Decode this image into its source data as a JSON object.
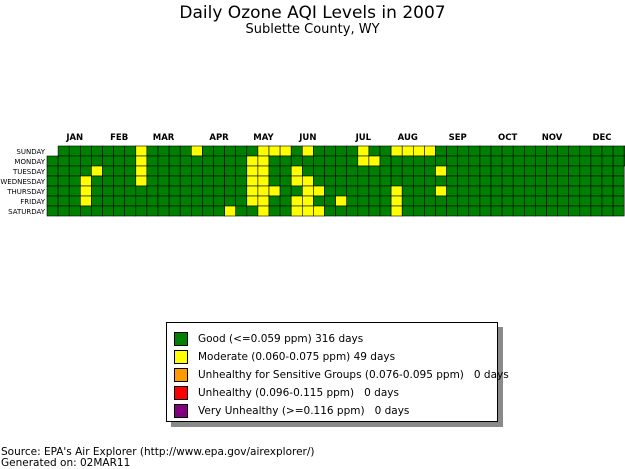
{
  "chart_data": {
    "type": "heatmap",
    "title": "Daily Ozone AQI Levels in 2007",
    "subtitle": "Sublette County, WY",
    "year": 2007,
    "months": [
      "JAN",
      "FEB",
      "MAR",
      "APR",
      "MAY",
      "JUN",
      "JUL",
      "AUG",
      "SEP",
      "OCT",
      "NOV",
      "DEC"
    ],
    "weekdays": [
      "SUNDAY",
      "MONDAY",
      "TUESDAY",
      "WEDNESDAY",
      "THURSDAY",
      "FRIDAY",
      "SATURDAY"
    ],
    "categories": [
      {
        "name": "Good",
        "range": "(<=0.059 ppm)",
        "days": "316 days",
        "color": "#008000"
      },
      {
        "name": "Moderate",
        "range": "(0.060-0.075 ppm)",
        "days": "49 days",
        "color": "#ffff00"
      },
      {
        "name": "Unhealthy for Sensitive Groups",
        "range": "(0.076-0.095 ppm)",
        "days": "0 days",
        "color": "#ff9900"
      },
      {
        "name": "Unhealthy",
        "range": "(0.096-0.115 ppm)",
        "days": "0 days",
        "color": "#ff0000"
      },
      {
        "name": "Very Unhealthy",
        "range": "(>=0.116 ppm)",
        "days": "0 days",
        "color": "#800080"
      }
    ],
    "default_category": "Good",
    "moderate_dates": [
      "2007-01-24",
      "2007-01-25",
      "2007-01-26",
      "2007-01-30",
      "2007-02-25",
      "2007-02-26",
      "2007-02-27",
      "2007-02-28",
      "2007-04-01",
      "2007-04-28",
      "2007-05-07",
      "2007-05-08",
      "2007-05-09",
      "2007-05-10",
      "2007-05-11",
      "2007-05-13",
      "2007-05-14",
      "2007-05-15",
      "2007-05-16",
      "2007-05-17",
      "2007-05-18",
      "2007-05-19",
      "2007-05-20",
      "2007-05-24",
      "2007-05-27",
      "2007-06-05",
      "2007-06-06",
      "2007-06-08",
      "2007-06-09",
      "2007-06-10",
      "2007-06-13",
      "2007-06-14",
      "2007-06-15",
      "2007-06-16",
      "2007-06-21",
      "2007-06-23",
      "2007-07-06",
      "2007-07-15",
      "2007-07-16",
      "2007-07-23",
      "2007-08-05",
      "2007-08-09",
      "2007-08-10",
      "2007-08-11",
      "2007-08-12",
      "2007-08-19",
      "2007-08-26",
      "2007-09-04",
      "2007-09-06"
    ]
  },
  "legend": {
    "items": [
      {
        "label": "Good (<=0.059 ppm) 316 days",
        "color": "#008000"
      },
      {
        "label": "Moderate (0.060-0.075 ppm)  49 days",
        "color": "#ffff00"
      },
      {
        "label": "Unhealthy for Sensitive Groups (0.076-0.095 ppm)",
        "days": "0 days",
        "color": "#ff9900"
      },
      {
        "label": "Unhealthy (0.096-0.115 ppm)",
        "days": "0 days",
        "color": "#ff0000"
      },
      {
        "label": "Very Unhealthy (>=0.116 ppm)",
        "days": "0 days",
        "color": "#800080"
      }
    ]
  },
  "footer": {
    "source": "Source: EPA's Air Explorer (http://www.epa.gov/airexplorer/)",
    "generated": "Generated on: 02MAR11"
  }
}
